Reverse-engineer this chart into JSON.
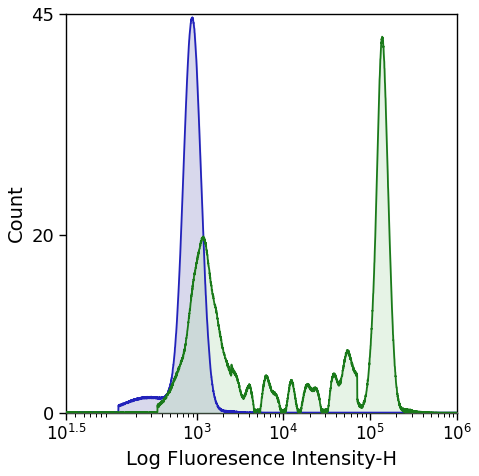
{
  "title": "",
  "xlabel": "Log Fluoresence Intensity-H",
  "ylabel": "Count",
  "xlim_log": [
    1.5,
    6
  ],
  "ylim": [
    0,
    45
  ],
  "yticks": [
    0,
    20,
    45
  ],
  "blue_color": "#2222bb",
  "blue_fill": "#b8b8dd",
  "green_color": "#1a7a1a",
  "green_fill": "#b8ddb8",
  "blue_fill_alpha": 0.55,
  "green_fill_alpha": 0.35,
  "line_width": 1.3,
  "figsize": [
    4.79,
    4.76
  ],
  "dpi": 100
}
